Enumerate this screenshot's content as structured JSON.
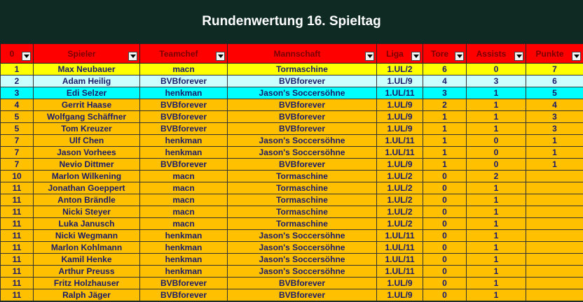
{
  "title": "Rundenwertung 16. Spieltag",
  "headers": [
    "0",
    "Spieler",
    "Teamchef",
    "Mannschaft",
    "Liga",
    "Tore",
    "Assists",
    "Punkte"
  ],
  "rows": [
    {
      "style": "r-yellow",
      "cells": [
        "1",
        "Max Neubauer",
        "macn",
        "Tormaschine",
        "1.UL/2",
        "6",
        "0",
        "7"
      ]
    },
    {
      "style": "r-light",
      "cells": [
        "2",
        "Adam Heilig",
        "BVBforever",
        "BVBforever",
        "1.UL/9",
        "4",
        "3",
        "6"
      ]
    },
    {
      "style": "r-cyan",
      "cells": [
        "3",
        "Edi Selzer",
        "henkman",
        "Jason's Soccersöhne",
        "1.UL/11",
        "3",
        "1",
        "5"
      ]
    },
    {
      "style": "r-orange",
      "cells": [
        "4",
        "Gerrit Haase",
        "BVBforever",
        "BVBforever",
        "1.UL/9",
        "2",
        "1",
        "4"
      ]
    },
    {
      "style": "r-orange",
      "cells": [
        "5",
        "Wolfgang Schäffner",
        "BVBforever",
        "BVBforever",
        "1.UL/9",
        "1",
        "1",
        "3"
      ]
    },
    {
      "style": "r-orange",
      "cells": [
        "5",
        "Tom Kreuzer",
        "BVBforever",
        "BVBforever",
        "1.UL/9",
        "1",
        "1",
        "3"
      ]
    },
    {
      "style": "r-orange",
      "cells": [
        "7",
        "Ulf Chen",
        "henkman",
        "Jason's Soccersöhne",
        "1.UL/11",
        "1",
        "0",
        "1"
      ]
    },
    {
      "style": "r-orange",
      "cells": [
        "7",
        "Jason Vorhees",
        "henkman",
        "Jason's Soccersöhne",
        "1.UL/11",
        "1",
        "0",
        "1"
      ]
    },
    {
      "style": "r-orange",
      "cells": [
        "7",
        "Nevio Dittmer",
        "BVBforever",
        "BVBforever",
        "1.UL/9",
        "1",
        "0",
        "1"
      ]
    },
    {
      "style": "r-orange",
      "cells": [
        "10",
        "Marlon Wilkening",
        "macn",
        "Tormaschine",
        "1.UL/2",
        "0",
        "2",
        ""
      ]
    },
    {
      "style": "r-orange",
      "cells": [
        "11",
        "Jonathan Goeppert",
        "macn",
        "Tormaschine",
        "1.UL/2",
        "0",
        "1",
        ""
      ]
    },
    {
      "style": "r-orange",
      "cells": [
        "11",
        "Anton Brändle",
        "macn",
        "Tormaschine",
        "1.UL/2",
        "0",
        "1",
        ""
      ]
    },
    {
      "style": "r-orange",
      "cells": [
        "11",
        "Nicki Steyer",
        "macn",
        "Tormaschine",
        "1.UL/2",
        "0",
        "1",
        ""
      ]
    },
    {
      "style": "r-orange",
      "cells": [
        "11",
        "Luka Janusch",
        "macn",
        "Tormaschine",
        "1.UL/2",
        "0",
        "1",
        ""
      ]
    },
    {
      "style": "r-orange",
      "cells": [
        "11",
        "Nicki Wegmann",
        "henkman",
        "Jason's Soccersöhne",
        "1.UL/11",
        "0",
        "1",
        ""
      ]
    },
    {
      "style": "r-orange",
      "cells": [
        "11",
        "Marlon Kohlmann",
        "henkman",
        "Jason's Soccersöhne",
        "1.UL/11",
        "0",
        "1",
        ""
      ]
    },
    {
      "style": "r-orange",
      "cells": [
        "11",
        "Kamil Henke",
        "henkman",
        "Jason's Soccersöhne",
        "1.UL/11",
        "0",
        "1",
        ""
      ]
    },
    {
      "style": "r-orange",
      "cells": [
        "11",
        "Arthur Preuss",
        "henkman",
        "Jason's Soccersöhne",
        "1.UL/11",
        "0",
        "1",
        ""
      ]
    },
    {
      "style": "r-orange",
      "cells": [
        "11",
        "Fritz Holzhauser",
        "BVBforever",
        "BVBforever",
        "1.UL/9",
        "0",
        "1",
        ""
      ]
    },
    {
      "style": "r-orange",
      "cells": [
        "11",
        "Ralph Jäger",
        "BVBforever",
        "BVBforever",
        "1.UL/9",
        "0",
        "1",
        ""
      ]
    }
  ]
}
